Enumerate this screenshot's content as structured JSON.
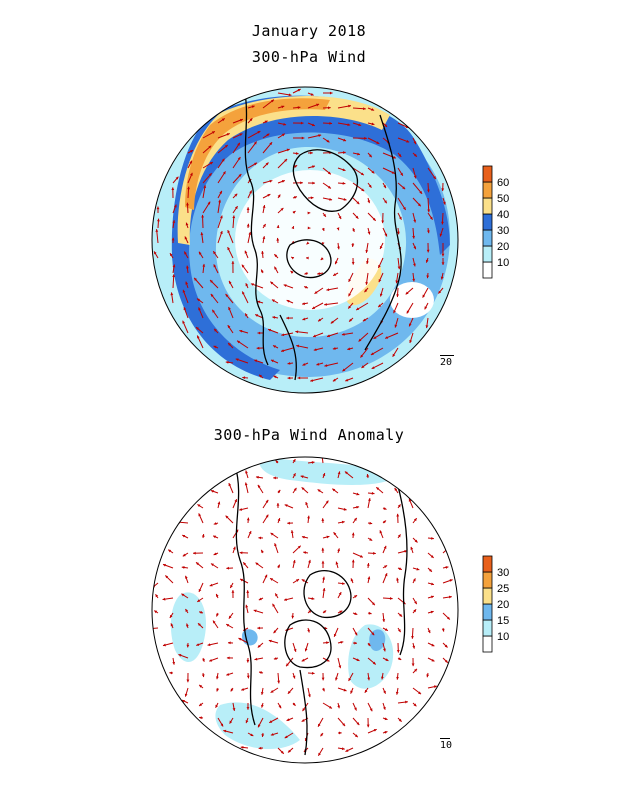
{
  "header": {
    "date": "January 2018",
    "top_title": "300-hPa Wind",
    "bottom_title": "300-hPa Wind Anomaly"
  },
  "top_panel": {
    "colorbar_levels": [
      "10",
      "20",
      "30",
      "40",
      "50",
      "60"
    ],
    "colorbar_colors": [
      "#ffffff",
      "#b8eef8",
      "#6fb8ee",
      "#2e6fd8",
      "#fbe08a",
      "#f4a23c",
      "#e8601b"
    ],
    "reference_vector": "20"
  },
  "bottom_panel": {
    "colorbar_levels": [
      "10",
      "15",
      "20",
      "25",
      "30"
    ],
    "colorbar_colors": [
      "#ffffff",
      "#b8eef8",
      "#6fb8ee",
      "#fbe08a",
      "#f4a23c",
      "#e8601b"
    ],
    "reference_vector": "10"
  },
  "colors": {
    "vector": "#c00000",
    "coastline": "#000000",
    "jet_light": "#b8eef8",
    "jet_mid": "#6fb8ee",
    "jet_blue": "#2e6fd8",
    "jet_yellow": "#fbe08a",
    "jet_orange": "#f4a23c",
    "jet_red": "#e8601b"
  }
}
